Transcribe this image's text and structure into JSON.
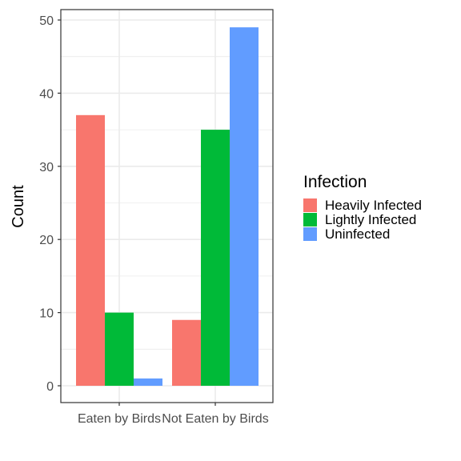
{
  "chart_data": {
    "type": "bar",
    "categories": [
      "Eaten by Birds",
      "Not Eaten by Birds"
    ],
    "series": [
      {
        "name": "Heavily Infected",
        "values": [
          37,
          9
        ],
        "color": "#F8766D"
      },
      {
        "name": "Lightly Infected",
        "values": [
          10,
          35
        ],
        "color": "#00BA38"
      },
      {
        "name": "Uninfected",
        "values": [
          1,
          49
        ],
        "color": "#619CFF"
      }
    ],
    "ylabel": "Count",
    "xlabel": "",
    "ylim": [
      0,
      51
    ],
    "yticks": [
      0,
      10,
      20,
      30,
      40,
      50
    ],
    "legend": {
      "title": "Infection",
      "position": "right"
    },
    "grid": true
  }
}
